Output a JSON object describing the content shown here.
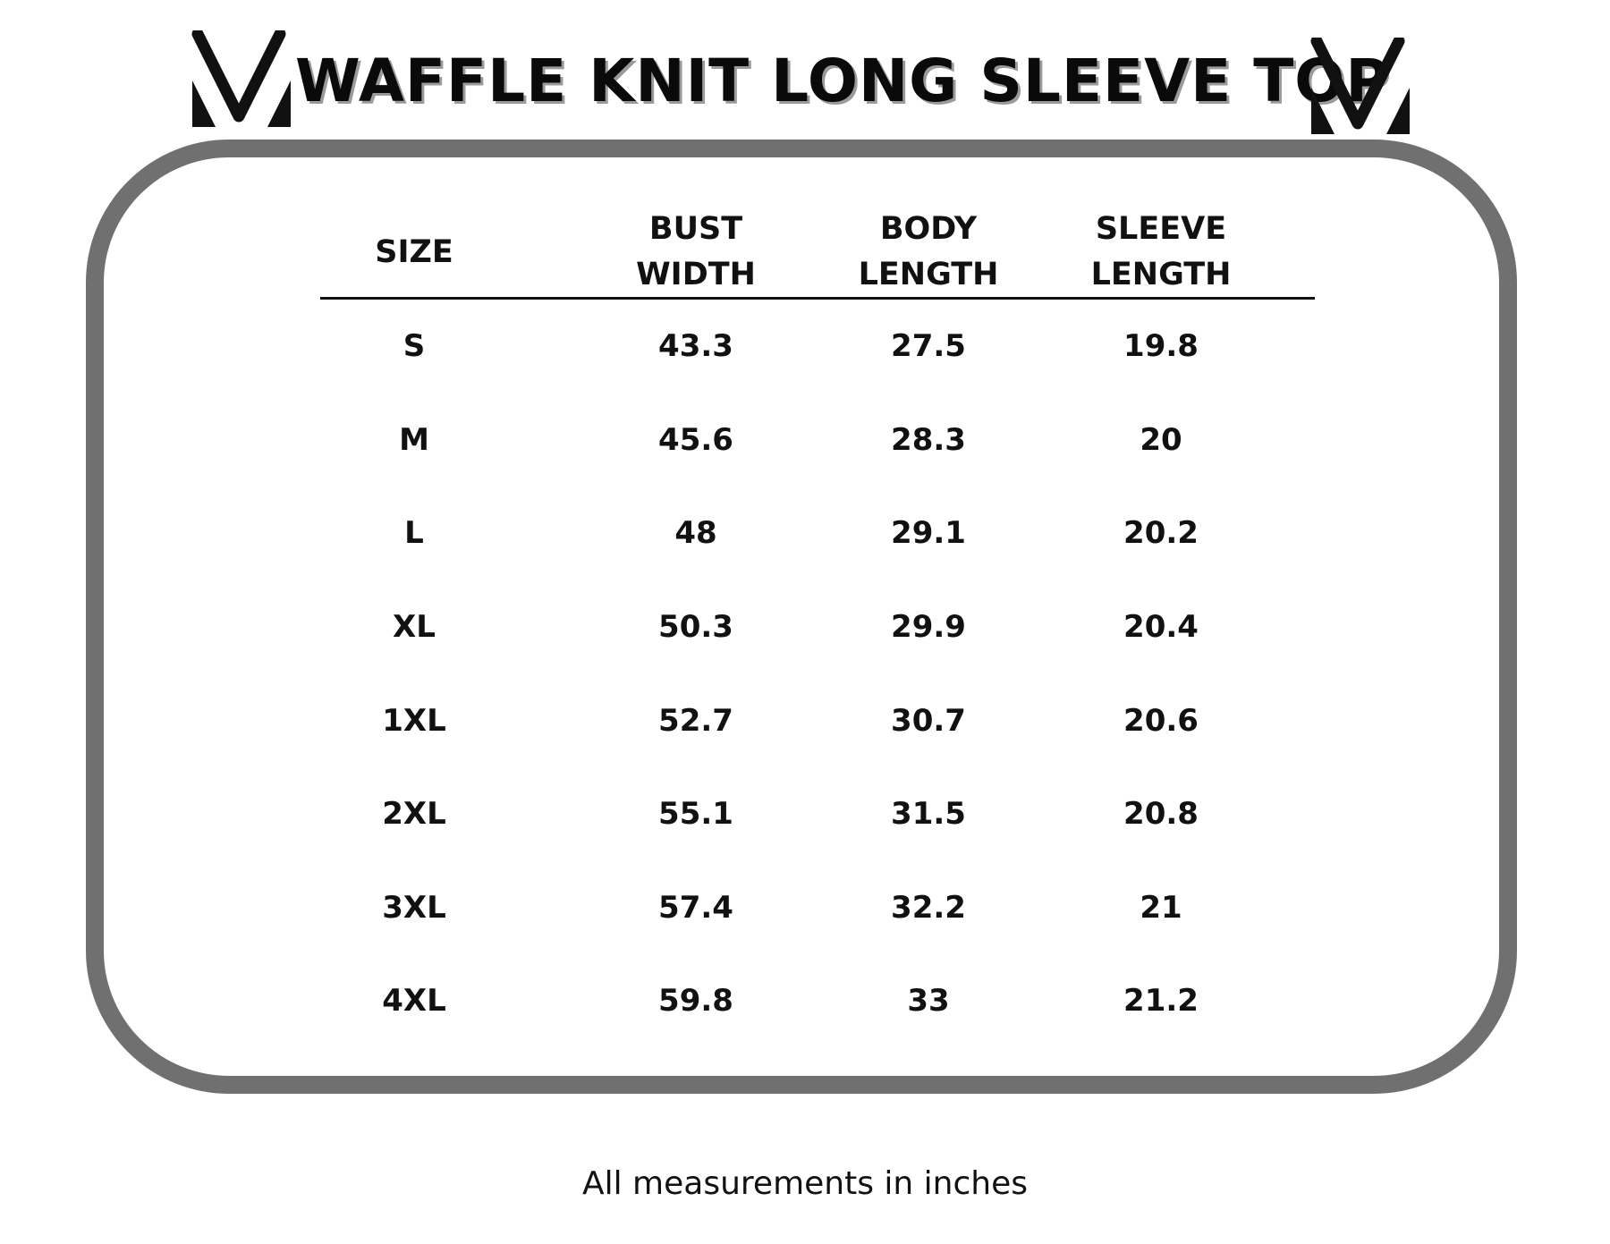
{
  "title": "WAFFLE KNIT LONG SLEEVE TOP",
  "logo_icon": "v-monogram-icon",
  "colors": {
    "frame": "#707070",
    "text": "#111111",
    "title_shadow": "#9a9a9a"
  },
  "table": {
    "headers": [
      "SIZE",
      "BUST\nWIDTH",
      "BODY\nLENGTH",
      "SLEEVE\nLENGTH"
    ],
    "rows": [
      [
        "S",
        "43.3",
        "27.5",
        "19.8"
      ],
      [
        "M",
        "45.6",
        "28.3",
        "20"
      ],
      [
        "L",
        "48",
        "29.1",
        "20.2"
      ],
      [
        "XL",
        "50.3",
        "29.9",
        "20.4"
      ],
      [
        "1XL",
        "52.7",
        "30.7",
        "20.6"
      ],
      [
        "2XL",
        "55.1",
        "31.5",
        "20.8"
      ],
      [
        "3XL",
        "57.4",
        "32.2",
        "21"
      ],
      [
        "4XL",
        "59.8",
        "33",
        "21.2"
      ]
    ]
  },
  "footer_note": "All measurements in inches"
}
